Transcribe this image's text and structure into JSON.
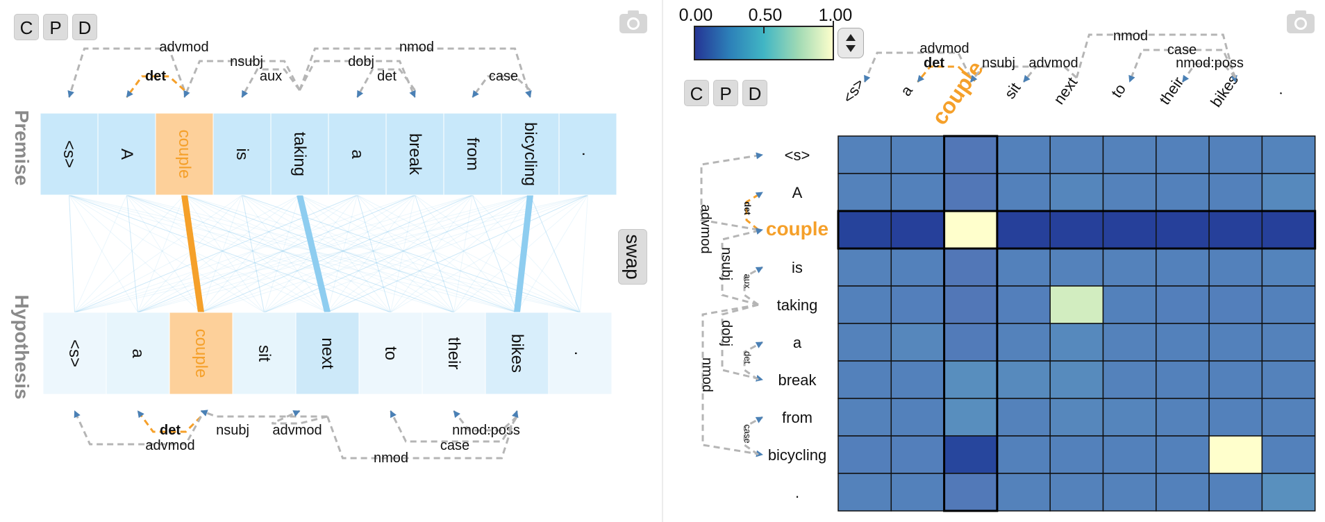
{
  "buttons": {
    "c": "C",
    "p": "P",
    "d": "D",
    "swap": "swap"
  },
  "icons": {
    "camera": "camera-icon",
    "stepper": "stepper-icon"
  },
  "side_labels": {
    "premise": "Premise",
    "hypothesis": "Hypothesis"
  },
  "premise_tokens": [
    "<s>",
    "A",
    "couple",
    "is",
    "taking",
    "a",
    "break",
    "from",
    "bicycling",
    "."
  ],
  "hypothesis_tokens": [
    "<s>",
    "a",
    "couple",
    "sit",
    "next",
    "to",
    "their",
    "bikes",
    "."
  ],
  "highlight": {
    "premise_index": 2,
    "hypothesis_index": 2,
    "color": "#f5a02a",
    "token_bg": "#fdd09a"
  },
  "premise_arcs": [
    {
      "label": "advmod",
      "bold": false,
      "highlight": false
    },
    {
      "label": "det",
      "bold": true,
      "highlight": true
    },
    {
      "label": "nsubj",
      "bold": false,
      "highlight": false
    },
    {
      "label": "aux",
      "bold": false,
      "highlight": false
    },
    {
      "label": "dobj",
      "bold": false,
      "highlight": false
    },
    {
      "label": "det",
      "bold": false,
      "highlight": false
    },
    {
      "label": "nmod",
      "bold": false,
      "highlight": false
    },
    {
      "label": "case",
      "bold": false,
      "highlight": false
    }
  ],
  "hypothesis_arcs": [
    {
      "label": "det",
      "bold": true,
      "highlight": true
    },
    {
      "label": "advmod",
      "bold": false,
      "highlight": false
    },
    {
      "label": "nsubj",
      "bold": false,
      "highlight": false
    },
    {
      "label": "advmod",
      "bold": false,
      "highlight": false
    },
    {
      "label": "nmod:poss",
      "bold": false,
      "highlight": false
    },
    {
      "label": "case",
      "bold": false,
      "highlight": false
    },
    {
      "label": "nmod",
      "bold": false,
      "highlight": false
    }
  ],
  "strong_alignments": [
    {
      "premise": 2,
      "hypothesis": 2,
      "color": "#f5a02a"
    },
    {
      "premise": 4,
      "hypothesis": 4,
      "color": "#8ecdf0"
    },
    {
      "premise": 8,
      "hypothesis": 7,
      "color": "#8ecdf0"
    }
  ],
  "colorbar": {
    "min_label": "0.00",
    "mid_label": "0.50",
    "max_label": "1.00"
  },
  "heatmap": {
    "rows": [
      "<s>",
      "A",
      "couple",
      "is",
      "taking",
      "a",
      "break",
      "from",
      "bicycling",
      "."
    ],
    "cols": [
      "<s>",
      "a",
      "couple",
      "sit",
      "next",
      "to",
      "their",
      "bikes",
      "."
    ],
    "highlight_row": 2,
    "highlight_col": 2,
    "values": [
      [
        0.3,
        0.28,
        0.18,
        0.28,
        0.3,
        0.3,
        0.28,
        0.28,
        0.32
      ],
      [
        0.3,
        0.28,
        0.18,
        0.28,
        0.35,
        0.3,
        0.28,
        0.28,
        0.38
      ],
      [
        0.1,
        0.08,
        1.0,
        0.08,
        0.08,
        0.08,
        0.08,
        0.08,
        0.08
      ],
      [
        0.3,
        0.28,
        0.18,
        0.28,
        0.3,
        0.3,
        0.28,
        0.28,
        0.32
      ],
      [
        0.28,
        0.26,
        0.18,
        0.26,
        0.88,
        0.28,
        0.26,
        0.26,
        0.28
      ],
      [
        0.3,
        0.36,
        0.22,
        0.3,
        0.38,
        0.3,
        0.28,
        0.28,
        0.3
      ],
      [
        0.28,
        0.28,
        0.45,
        0.4,
        0.42,
        0.3,
        0.28,
        0.28,
        0.3
      ],
      [
        0.3,
        0.28,
        0.45,
        0.3,
        0.36,
        0.34,
        0.3,
        0.28,
        0.3
      ],
      [
        0.26,
        0.26,
        0.12,
        0.28,
        0.28,
        0.28,
        0.28,
        1.0,
        0.28
      ],
      [
        0.3,
        0.28,
        0.2,
        0.3,
        0.3,
        0.3,
        0.28,
        0.28,
        0.48
      ]
    ]
  },
  "heatmap_col_arcs": [
    "advmod",
    "det",
    "nsubj",
    "advmod",
    "nmod",
    "case",
    "nmod:poss"
  ],
  "heatmap_row_arcs": [
    "det",
    "advmod",
    "nsubj",
    "aux",
    "dobj",
    "det",
    "nmod",
    "case"
  ],
  "colors": {
    "token_bg": "#c8e8fa",
    "hyp_bg": "#e6f3fc",
    "arc": "#b5b5b5",
    "arrow": "#4a80b5",
    "link": "#8ecdf0"
  }
}
